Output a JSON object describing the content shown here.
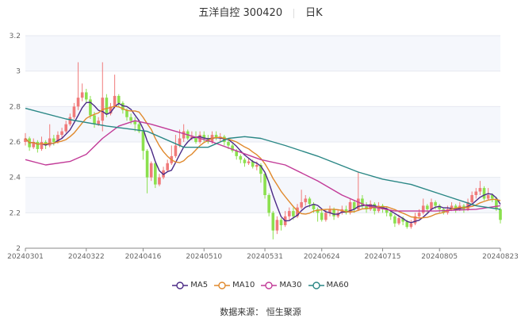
{
  "title": {
    "name": "五洋自控 300420",
    "period": "日K"
  },
  "source": "数据来源： 恒生聚源",
  "colors": {
    "up": "#f07a7a",
    "down": "#8be04e",
    "MA5": "#4b2a86",
    "MA10": "#e0892c",
    "MA30": "#c23b98",
    "MA60": "#2a8785"
  },
  "chart_data": {
    "type": "candlestick",
    "ylim": [
      2,
      3.2
    ],
    "yticks": [
      "3.2",
      "3",
      "2.8",
      "2.6",
      "2.4",
      "2.2",
      "2"
    ],
    "xticks": [
      {
        "label": "20240301",
        "index": 0
      },
      {
        "label": "20240322",
        "index": 15
      },
      {
        "label": "20240416",
        "index": 29
      },
      {
        "label": "20240510",
        "index": 44
      },
      {
        "label": "20240531",
        "index": 59
      },
      {
        "label": "20240624",
        "index": 73
      },
      {
        "label": "20240715",
        "index": 88
      },
      {
        "label": "20240805",
        "index": 102
      },
      {
        "label": "20240823",
        "index": 117
      }
    ],
    "candle_format": [
      "open",
      "close",
      "low",
      "high"
    ],
    "candles": [
      [
        2.6,
        2.62,
        2.58,
        2.65
      ],
      [
        2.62,
        2.57,
        2.55,
        2.63
      ],
      [
        2.57,
        2.6,
        2.56,
        2.62
      ],
      [
        2.6,
        2.56,
        2.54,
        2.61
      ],
      [
        2.56,
        2.6,
        2.55,
        2.63
      ],
      [
        2.6,
        2.58,
        2.56,
        2.61
      ],
      [
        2.58,
        2.62,
        2.57,
        2.7
      ],
      [
        2.62,
        2.6,
        2.58,
        2.64
      ],
      [
        2.6,
        2.64,
        2.59,
        2.66
      ],
      [
        2.64,
        2.66,
        2.62,
        2.68
      ],
      [
        2.66,
        2.7,
        2.65,
        2.72
      ],
      [
        2.7,
        2.74,
        2.69,
        2.76
      ],
      [
        2.74,
        2.8,
        2.73,
        2.82
      ],
      [
        2.8,
        2.85,
        2.78,
        3.05
      ],
      [
        2.85,
        2.88,
        2.83,
        2.93
      ],
      [
        2.88,
        2.84,
        2.82,
        2.9
      ],
      [
        2.84,
        2.75,
        2.73,
        2.86
      ],
      [
        2.75,
        2.7,
        2.68,
        2.77
      ],
      [
        2.7,
        2.72,
        2.69,
        2.74
      ],
      [
        2.72,
        2.85,
        2.66,
        3.05
      ],
      [
        2.85,
        2.76,
        2.74,
        2.87
      ],
      [
        2.76,
        2.8,
        2.75,
        2.82
      ],
      [
        2.8,
        2.86,
        2.79,
        2.98
      ],
      [
        2.86,
        2.82,
        2.8,
        2.87
      ],
      [
        2.82,
        2.78,
        2.76,
        2.83
      ],
      [
        2.78,
        2.74,
        2.72,
        2.79
      ],
      [
        2.74,
        2.72,
        2.7,
        2.76
      ],
      [
        2.72,
        2.7,
        2.66,
        2.74
      ],
      [
        2.7,
        2.66,
        2.65,
        2.72
      ],
      [
        2.66,
        2.55,
        2.5,
        2.67
      ],
      [
        2.55,
        2.4,
        2.31,
        2.56
      ],
      [
        2.4,
        2.48,
        2.38,
        2.49
      ],
      [
        2.48,
        2.36,
        2.34,
        2.49
      ],
      [
        2.36,
        2.4,
        2.35,
        2.42
      ],
      [
        2.4,
        2.44,
        2.39,
        2.46
      ],
      [
        2.44,
        2.48,
        2.43,
        2.5
      ],
      [
        2.48,
        2.52,
        2.47,
        2.58
      ],
      [
        2.52,
        2.58,
        2.51,
        2.64
      ],
      [
        2.58,
        2.62,
        2.57,
        2.67
      ],
      [
        2.62,
        2.66,
        2.6,
        2.7
      ],
      [
        2.66,
        2.62,
        2.61,
        2.67
      ],
      [
        2.62,
        2.63,
        2.61,
        2.66
      ],
      [
        2.63,
        2.6,
        2.59,
        2.66
      ],
      [
        2.6,
        2.64,
        2.59,
        2.66
      ],
      [
        2.64,
        2.62,
        2.6,
        2.66
      ],
      [
        2.62,
        2.6,
        2.59,
        2.64
      ],
      [
        2.6,
        2.64,
        2.59,
        2.66
      ],
      [
        2.64,
        2.62,
        2.61,
        2.66
      ],
      [
        2.62,
        2.63,
        2.6,
        2.65
      ],
      [
        2.63,
        2.6,
        2.58,
        2.64
      ],
      [
        2.6,
        2.58,
        2.56,
        2.61
      ],
      [
        2.58,
        2.55,
        2.54,
        2.59
      ],
      [
        2.55,
        2.52,
        2.5,
        2.56
      ],
      [
        2.52,
        2.5,
        2.48,
        2.53
      ],
      [
        2.5,
        2.48,
        2.46,
        2.51
      ],
      [
        2.48,
        2.49,
        2.47,
        2.51
      ],
      [
        2.49,
        2.46,
        2.45,
        2.5
      ],
      [
        2.46,
        2.47,
        2.44,
        2.49
      ],
      [
        2.47,
        2.42,
        2.37,
        2.48
      ],
      [
        2.42,
        2.3,
        2.28,
        2.43
      ],
      [
        2.3,
        2.2,
        2.18,
        2.31
      ],
      [
        2.2,
        2.1,
        2.05,
        2.21
      ],
      [
        2.1,
        2.16,
        2.08,
        2.18
      ],
      [
        2.16,
        2.13,
        2.1,
        2.17
      ],
      [
        2.13,
        2.18,
        2.12,
        2.21
      ],
      [
        2.18,
        2.21,
        2.16,
        2.23
      ],
      [
        2.21,
        2.18,
        2.16,
        2.23
      ],
      [
        2.18,
        2.23,
        2.17,
        2.25
      ],
      [
        2.23,
        2.26,
        2.22,
        2.33
      ],
      [
        2.26,
        2.28,
        2.24,
        2.3
      ],
      [
        2.28,
        2.25,
        2.23,
        2.29
      ],
      [
        2.25,
        2.22,
        2.2,
        2.26
      ],
      [
        2.22,
        2.2,
        2.15,
        2.23
      ],
      [
        2.2,
        2.16,
        2.15,
        2.22
      ],
      [
        2.16,
        2.2,
        2.15,
        2.22
      ],
      [
        2.2,
        2.22,
        2.18,
        2.24
      ],
      [
        2.22,
        2.18,
        2.16,
        2.23
      ],
      [
        2.18,
        2.2,
        2.17,
        2.22
      ],
      [
        2.2,
        2.22,
        2.19,
        2.24
      ],
      [
        2.22,
        2.2,
        2.19,
        2.24
      ],
      [
        2.2,
        2.26,
        2.19,
        2.28
      ],
      [
        2.26,
        2.22,
        2.2,
        2.27
      ],
      [
        2.22,
        2.28,
        2.21,
        2.43
      ],
      [
        2.28,
        2.24,
        2.22,
        2.3
      ],
      [
        2.24,
        2.22,
        2.2,
        2.26
      ],
      [
        2.22,
        2.25,
        2.21,
        2.27
      ],
      [
        2.25,
        2.21,
        2.19,
        2.26
      ],
      [
        2.21,
        2.24,
        2.2,
        2.26
      ],
      [
        2.24,
        2.22,
        2.2,
        2.25
      ],
      [
        2.22,
        2.2,
        2.18,
        2.23
      ],
      [
        2.2,
        2.18,
        2.16,
        2.21
      ],
      [
        2.18,
        2.14,
        2.12,
        2.19
      ],
      [
        2.14,
        2.17,
        2.13,
        2.19
      ],
      [
        2.17,
        2.15,
        2.13,
        2.18
      ],
      [
        2.15,
        2.12,
        2.11,
        2.16
      ],
      [
        2.12,
        2.14,
        2.11,
        2.16
      ],
      [
        2.14,
        2.18,
        2.13,
        2.2
      ],
      [
        2.18,
        2.2,
        2.17,
        2.22
      ],
      [
        2.2,
        2.24,
        2.19,
        2.28
      ],
      [
        2.24,
        2.22,
        2.2,
        2.25
      ],
      [
        2.22,
        2.26,
        2.21,
        2.28
      ],
      [
        2.26,
        2.24,
        2.22,
        2.27
      ],
      [
        2.24,
        2.22,
        2.2,
        2.25
      ],
      [
        2.22,
        2.2,
        2.19,
        2.23
      ],
      [
        2.2,
        2.22,
        2.19,
        2.24
      ],
      [
        2.22,
        2.24,
        2.21,
        2.26
      ],
      [
        2.24,
        2.22,
        2.2,
        2.25
      ],
      [
        2.22,
        2.24,
        2.21,
        2.26
      ],
      [
        2.24,
        2.22,
        2.2,
        2.25
      ],
      [
        2.22,
        2.26,
        2.21,
        2.28
      ],
      [
        2.26,
        2.3,
        2.25,
        2.32
      ],
      [
        2.3,
        2.32,
        2.28,
        2.34
      ],
      [
        2.32,
        2.34,
        2.3,
        2.38
      ],
      [
        2.34,
        2.28,
        2.27,
        2.35
      ],
      [
        2.28,
        2.3,
        2.27,
        2.34
      ],
      [
        2.3,
        2.28,
        2.26,
        2.31
      ],
      [
        2.28,
        2.22,
        2.21,
        2.29
      ],
      [
        2.22,
        2.16,
        2.14,
        2.23
      ]
    ],
    "series": [
      {
        "name": "MA5",
        "window": 5
      },
      {
        "name": "MA10",
        "window": 10
      },
      {
        "name": "MA30",
        "points": [
          [
            0,
            2.5
          ],
          [
            5,
            2.47
          ],
          [
            11,
            2.49
          ],
          [
            15,
            2.53
          ],
          [
            19,
            2.62
          ],
          [
            23,
            2.69
          ],
          [
            27,
            2.72
          ],
          [
            31,
            2.7
          ],
          [
            37,
            2.66
          ],
          [
            43,
            2.62
          ],
          [
            46,
            2.6
          ],
          [
            52,
            2.55
          ],
          [
            58,
            2.5
          ],
          [
            64,
            2.47
          ],
          [
            72,
            2.38
          ],
          [
            78,
            2.3
          ],
          [
            84,
            2.24
          ],
          [
            91,
            2.21
          ],
          [
            101,
            2.21
          ],
          [
            111,
            2.22
          ],
          [
            117,
            2.24
          ]
        ]
      },
      {
        "name": "MA60",
        "points": [
          [
            0,
            2.79
          ],
          [
            10,
            2.73
          ],
          [
            20,
            2.69
          ],
          [
            30,
            2.66
          ],
          [
            39,
            2.57
          ],
          [
            45,
            2.57
          ],
          [
            50,
            2.62
          ],
          [
            54,
            2.63
          ],
          [
            58,
            2.62
          ],
          [
            64,
            2.58
          ],
          [
            72,
            2.52
          ],
          [
            82,
            2.43
          ],
          [
            88,
            2.39
          ],
          [
            95,
            2.36
          ],
          [
            103,
            2.3
          ],
          [
            111,
            2.24
          ],
          [
            117,
            2.22
          ]
        ]
      }
    ],
    "legend": [
      "MA5",
      "MA10",
      "MA30",
      "MA60"
    ],
    "legend_position": "bottom",
    "grid": true
  }
}
